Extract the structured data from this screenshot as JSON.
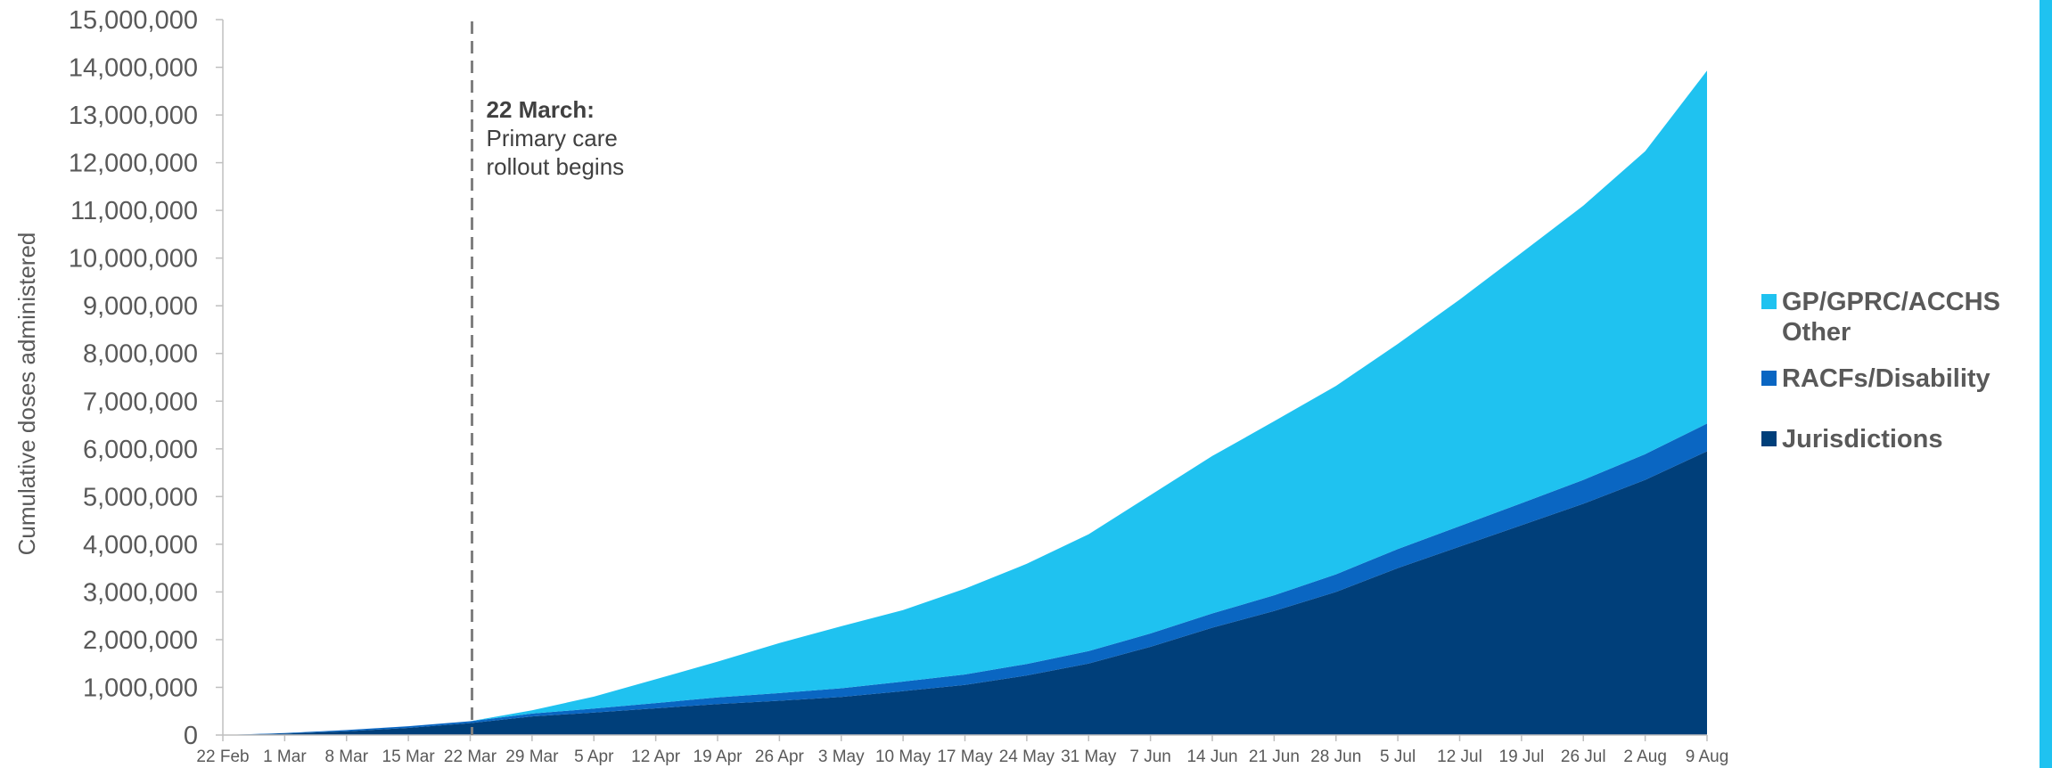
{
  "chart_data": {
    "type": "area",
    "stacked": true,
    "ylabel": "Cumulative doses administered",
    "xlabel": "",
    "ylim": [
      0,
      15000000
    ],
    "yticks": [
      0,
      1000000,
      2000000,
      3000000,
      4000000,
      5000000,
      6000000,
      7000000,
      8000000,
      9000000,
      10000000,
      11000000,
      12000000,
      13000000,
      14000000,
      15000000
    ],
    "ytick_labels": [
      "0",
      "1,000,000",
      "2,000,000",
      "3,000,000",
      "4,000,000",
      "5,000,000",
      "6,000,000",
      "7,000,000",
      "8,000,000",
      "9,000,000",
      "10,000,000",
      "11,000,000",
      "12,000,000",
      "13,000,000",
      "14,000,000",
      "15,000,000"
    ],
    "xticks": [
      "22 Feb",
      "1 Mar",
      "8 Mar",
      "15 Mar",
      "22 Mar",
      "29 Mar",
      "5 Apr",
      "12 Apr",
      "19 Apr",
      "26 Apr",
      "3 May",
      "10 May",
      "17 May",
      "24 May",
      "31 May",
      "7 Jun",
      "14 Jun",
      "21 Jun",
      "28 Jun",
      "5 Jul",
      "12 Jul",
      "19 Jul",
      "26 Jul",
      "2 Aug",
      "9 Aug"
    ],
    "x": [
      "22 Feb",
      "1 Mar",
      "8 Mar",
      "15 Mar",
      "22 Mar",
      "29 Mar",
      "5 Apr",
      "12 Apr",
      "19 Apr",
      "26 Apr",
      "3 May",
      "10 May",
      "17 May",
      "24 May",
      "31 May",
      "7 Jun",
      "14 Jun",
      "21 Jun",
      "28 Jun",
      "5 Jul",
      "12 Jul",
      "19 Jul",
      "26 Jul",
      "2 Aug",
      "9 Aug"
    ],
    "series": [
      {
        "name": "Jurisdictions",
        "color": "#003f7a",
        "values": [
          0,
          30000,
          80000,
          150000,
          250000,
          390000,
          470000,
          560000,
          650000,
          720000,
          800000,
          920000,
          1050000,
          1250000,
          1500000,
          1850000,
          2250000,
          2600000,
          3000000,
          3500000,
          3950000,
          4400000,
          4850000,
          5350000,
          5950000
        ]
      },
      {
        "name": "RACFs/Disability",
        "color": "#0a66c2",
        "values": [
          0,
          12000,
          25000,
          35000,
          40000,
          60000,
          85000,
          110000,
          140000,
          160000,
          180000,
          200000,
          220000,
          240000,
          260000,
          280000,
          300000,
          330000,
          370000,
          400000,
          430000,
          460000,
          500000,
          540000,
          580000
        ]
      },
      {
        "name": "GP/GPRC/ACCHS Other",
        "color": "#1fc2f0",
        "values": [
          0,
          0,
          0,
          0,
          0,
          70000,
          250000,
          500000,
          750000,
          1050000,
          1300000,
          1500000,
          1800000,
          2100000,
          2450000,
          2900000,
          3300000,
          3650000,
          3950000,
          4300000,
          4750000,
          5250000,
          5750000,
          6350000,
          7400000
        ]
      }
    ],
    "annotation": {
      "x": "22 Mar",
      "title": "22 March:",
      "lines": [
        "Primary care",
        "rollout begins"
      ]
    },
    "legend_position": "right",
    "grid": false
  },
  "legend": [
    {
      "label": "GP/GPRC/ACCHS\nOther",
      "color": "#1fc2f0"
    },
    {
      "label": "RACFs/Disability",
      "color": "#0a66c2"
    },
    {
      "label": "Jurisdictions",
      "color": "#003f7a"
    }
  ],
  "right_bar_color": "#1fc2f0"
}
